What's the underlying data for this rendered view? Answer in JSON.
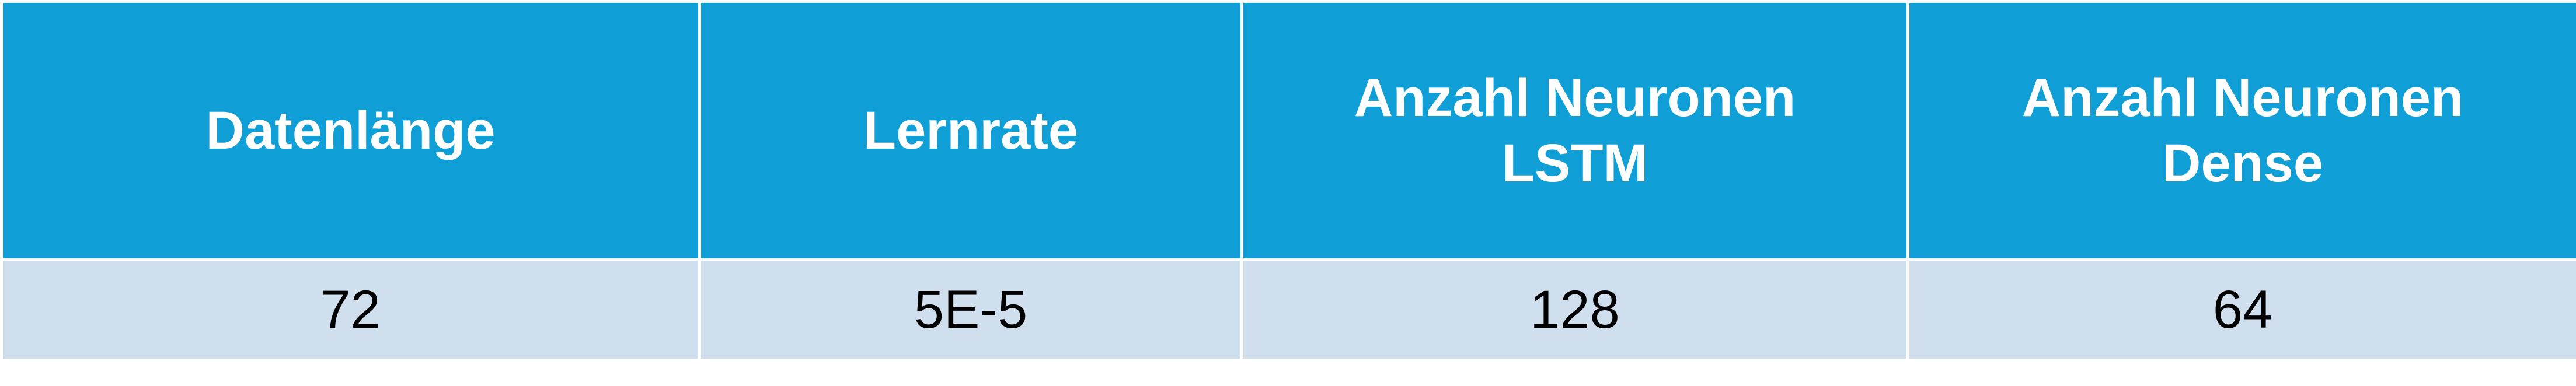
{
  "table": {
    "headers": [
      [
        "Datenlänge"
      ],
      [
        "Lernrate"
      ],
      [
        "Anzahl Neuronen",
        "LSTM"
      ],
      [
        "Anzahl Neuronen",
        "Dense"
      ]
    ],
    "rows": [
      [
        "72",
        "5E-5",
        "128",
        "64"
      ]
    ]
  },
  "colors": {
    "header_bg": "#0f9ed5",
    "header_text": "#ffffff",
    "body_bg": "#cfdfed",
    "body_text": "#000000",
    "grid_lines": "#ffffff"
  }
}
